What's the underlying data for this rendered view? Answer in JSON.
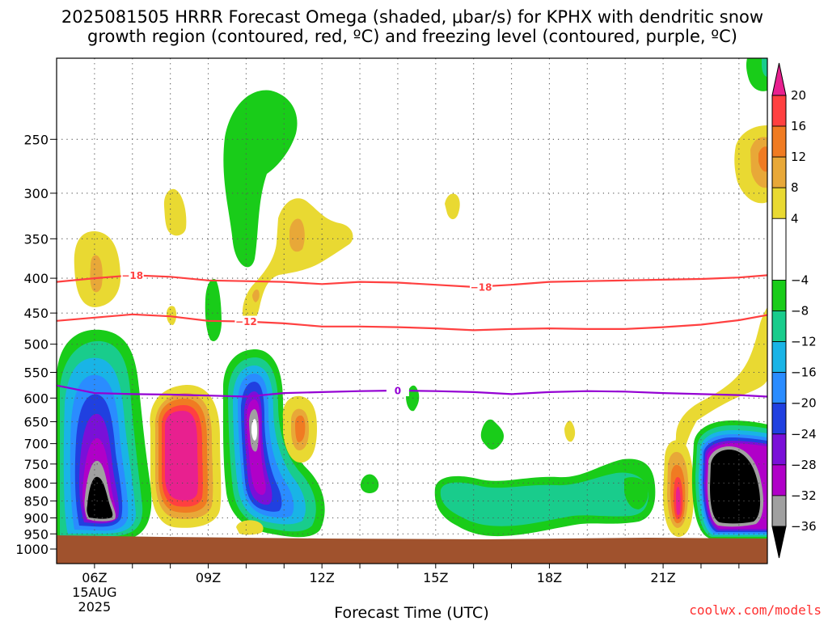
{
  "header": {
    "title_line1": "2025081505 HRRR Forecast Omega (shaded, μbar/s) for KPHX with dendritic snow",
    "title_line2": "growth region (contoured, red, ºC) and freezing level (contoured, purple, ºC)"
  },
  "footer": {
    "xlabel": "Forecast Time (UTC)",
    "credit": "coolwx.com/models"
  },
  "colors": {
    "ground": "#a0522d",
    "dgz_contour": "#ff4040",
    "freezing_contour": "#9400d3",
    "credit": "#ff3030",
    "grid": "#555555"
  },
  "chart_data": {
    "type": "heatmap",
    "x_ticks": [
      {
        "label": "06Z",
        "sub": [
          "15AUG",
          "2025"
        ]
      },
      {
        "label": "09Z",
        "sub": []
      },
      {
        "label": "12Z",
        "sub": []
      },
      {
        "label": "15Z",
        "sub": []
      },
      {
        "label": "18Z",
        "sub": []
      },
      {
        "label": "21Z",
        "sub": []
      }
    ],
    "y_ticks": [
      "250",
      "300",
      "350",
      "400",
      "450",
      "500",
      "550",
      "600",
      "650",
      "700",
      "750",
      "800",
      "850",
      "900",
      "950",
      "1000"
    ],
    "xlim_hours": [
      5,
      23.75
    ],
    "ylim_hpa": [
      1000,
      190
    ],
    "y_scale": "log",
    "grid": true,
    "colorbar": {
      "bins": [
        {
          "from": 20,
          "to": 24,
          "color": "#e8208f"
        },
        {
          "from": 16,
          "to": 20,
          "color": "#ff4040"
        },
        {
          "from": 12,
          "to": 16,
          "color": "#f07b22"
        },
        {
          "from": 8,
          "to": 12,
          "color": "#e8a838"
        },
        {
          "from": 4,
          "to": 8,
          "color": "#e9d932"
        },
        {
          "from": -4,
          "to": 4,
          "color": "#ffffff"
        },
        {
          "from": -8,
          "to": -4,
          "color": "#19cc19"
        },
        {
          "from": -12,
          "to": -8,
          "color": "#19cc8c"
        },
        {
          "from": -16,
          "to": -12,
          "color": "#19b4e6"
        },
        {
          "from": -20,
          "to": -16,
          "color": "#2a8cff"
        },
        {
          "from": -24,
          "to": -20,
          "color": "#2040e0"
        },
        {
          "from": -28,
          "to": -24,
          "color": "#7a10d8"
        },
        {
          "from": -32,
          "to": -28,
          "color": "#b000c8"
        },
        {
          "from": -36,
          "to": -32,
          "color": "#a0a0a0"
        },
        {
          "from": -40,
          "to": -36,
          "color": "#000000"
        }
      ],
      "tick_labels": [
        "20",
        "16",
        "12",
        "8",
        "4",
        "−4",
        "−8",
        "−12",
        "−16",
        "−20",
        "−24",
        "−28",
        "−32",
        "−36"
      ]
    },
    "contours": [
      {
        "name": "-18",
        "label": "−18",
        "color": "#ff4040",
        "points": [
          [
            5.0,
            405
          ],
          [
            6.0,
            400
          ],
          [
            7.0,
            396
          ],
          [
            8.0,
            398
          ],
          [
            9.0,
            403
          ],
          [
            10.0,
            404
          ],
          [
            11.0,
            405
          ],
          [
            12.0,
            408
          ],
          [
            13.0,
            405
          ],
          [
            14.0,
            406
          ],
          [
            15.0,
            409
          ],
          [
            16.0,
            412
          ],
          [
            17.0,
            409
          ],
          [
            18.0,
            405
          ],
          [
            19.0,
            404
          ],
          [
            20.0,
            403
          ],
          [
            21.0,
            402
          ],
          [
            22.0,
            401
          ],
          [
            23.0,
            399
          ],
          [
            23.75,
            396
          ]
        ],
        "label_positions": [
          [
            7.0,
            396
          ],
          [
            16.2,
            412
          ]
        ]
      },
      {
        "name": "-12",
        "label": "−12",
        "color": "#ff4040",
        "points": [
          [
            5.0,
            462
          ],
          [
            6.0,
            457
          ],
          [
            7.0,
            452
          ],
          [
            8.0,
            455
          ],
          [
            9.0,
            462
          ],
          [
            10.0,
            463
          ],
          [
            11.0,
            466
          ],
          [
            12.0,
            471
          ],
          [
            13.0,
            471
          ],
          [
            14.0,
            472
          ],
          [
            15.0,
            474
          ],
          [
            16.0,
            477
          ],
          [
            17.0,
            475
          ],
          [
            18.0,
            474
          ],
          [
            19.0,
            475
          ],
          [
            20.0,
            475
          ],
          [
            21.0,
            472
          ],
          [
            22.0,
            468
          ],
          [
            23.0,
            461
          ],
          [
            23.75,
            453
          ]
        ],
        "label_positions": [
          [
            10.0,
            463
          ]
        ]
      },
      {
        "name": "0",
        "label": "0",
        "color": "#9400d3",
        "points": [
          [
            5.0,
            575
          ],
          [
            6.0,
            590
          ],
          [
            7.0,
            592
          ],
          [
            8.0,
            593
          ],
          [
            9.0,
            595
          ],
          [
            10.0,
            597
          ],
          [
            11.0,
            590
          ],
          [
            12.0,
            588
          ],
          [
            13.0,
            586
          ],
          [
            14.0,
            585
          ],
          [
            15.0,
            586
          ],
          [
            16.0,
            588
          ],
          [
            17.0,
            592
          ],
          [
            18.0,
            588
          ],
          [
            19.0,
            586
          ],
          [
            20.0,
            587
          ],
          [
            21.0,
            590
          ],
          [
            22.0,
            592
          ],
          [
            23.0,
            594
          ],
          [
            23.75,
            597
          ]
        ],
        "label_positions": [
          [
            14.0,
            585
          ]
        ]
      }
    ]
  }
}
